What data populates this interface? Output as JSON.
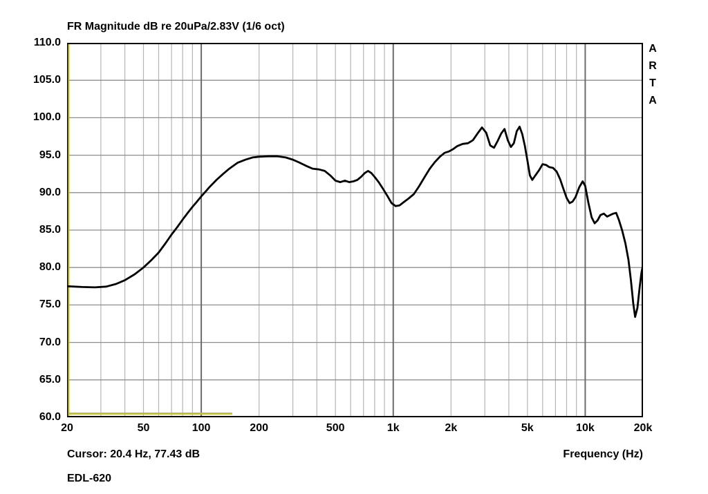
{
  "branding": {
    "vertical_label": "ARTA"
  },
  "chart_data": {
    "type": "line",
    "title": "FR Magnitude dB re 20uPa/2.83V (1/6 oct)",
    "xlabel": "Frequency (Hz)",
    "x_scale": "log",
    "xlim": [
      20,
      20000
    ],
    "ylim": [
      60,
      110
    ],
    "y_tick_step": 5,
    "grid_on": true,
    "x_ticks": [
      {
        "value": 20,
        "label": "20"
      },
      {
        "value": 50,
        "label": "50"
      },
      {
        "value": 100,
        "label": "100"
      },
      {
        "value": 200,
        "label": "200"
      },
      {
        "value": 500,
        "label": "500"
      },
      {
        "value": 1000,
        "label": "1k"
      },
      {
        "value": 2000,
        "label": "2k"
      },
      {
        "value": 5000,
        "label": "5k"
      },
      {
        "value": 10000,
        "label": "10k"
      },
      {
        "value": 20000,
        "label": "20k"
      }
    ],
    "y_ticks": [
      {
        "value": 110,
        "label": "110.0"
      },
      {
        "value": 105,
        "label": "105.0"
      },
      {
        "value": 100,
        "label": "100.0"
      },
      {
        "value": 95,
        "label": "95.0"
      },
      {
        "value": 90,
        "label": "90.0"
      },
      {
        "value": 85,
        "label": "85.0"
      },
      {
        "value": 80,
        "label": "80.0"
      },
      {
        "value": 75,
        "label": "75.0"
      },
      {
        "value": 70,
        "label": "70.0"
      },
      {
        "value": 65,
        "label": "65.0"
      },
      {
        "value": 60,
        "label": "60.0"
      }
    ],
    "colors": {
      "minor_grid": "#b4b4b4",
      "major_grid": "#8e8e8e",
      "decade_grid": "#6b6b6b",
      "border": "#000000",
      "curve": "#000000",
      "cursor": "#c9bd22",
      "background": "#ffffff"
    },
    "cursor": {
      "freq_hz": 20.4,
      "db": 77.43,
      "readout": "Cursor: 20.4 Hz, 77.43 dB"
    },
    "marker_line": {
      "db": 60.5,
      "from_hz": 20,
      "to_hz": 145
    },
    "series": [
      {
        "name": "EDL-620",
        "color": "#000000",
        "points": [
          [
            20,
            77.5
          ],
          [
            24,
            77.4
          ],
          [
            28,
            77.35
          ],
          [
            32,
            77.45
          ],
          [
            36,
            77.8
          ],
          [
            40,
            78.3
          ],
          [
            45,
            79.1
          ],
          [
            50,
            80.0
          ],
          [
            55,
            81.0
          ],
          [
            60,
            82.0
          ],
          [
            65,
            83.2
          ],
          [
            70,
            84.4
          ],
          [
            75,
            85.4
          ],
          [
            80,
            86.4
          ],
          [
            85,
            87.3
          ],
          [
            90,
            88.1
          ],
          [
            95,
            88.8
          ],
          [
            100,
            89.5
          ],
          [
            105,
            90.1
          ],
          [
            110,
            90.7
          ],
          [
            120,
            91.7
          ],
          [
            130,
            92.5
          ],
          [
            140,
            93.2
          ],
          [
            155,
            94.0
          ],
          [
            170,
            94.4
          ],
          [
            185,
            94.7
          ],
          [
            200,
            94.8
          ],
          [
            225,
            94.85
          ],
          [
            250,
            94.85
          ],
          [
            275,
            94.7
          ],
          [
            300,
            94.4
          ],
          [
            325,
            94.0
          ],
          [
            350,
            93.6
          ],
          [
            380,
            93.2
          ],
          [
            410,
            93.1
          ],
          [
            440,
            92.9
          ],
          [
            470,
            92.3
          ],
          [
            500,
            91.6
          ],
          [
            530,
            91.4
          ],
          [
            560,
            91.6
          ],
          [
            590,
            91.4
          ],
          [
            620,
            91.5
          ],
          [
            650,
            91.7
          ],
          [
            680,
            92.1
          ],
          [
            710,
            92.6
          ],
          [
            740,
            92.9
          ],
          [
            770,
            92.6
          ],
          [
            800,
            92.1
          ],
          [
            840,
            91.4
          ],
          [
            880,
            90.6
          ],
          [
            930,
            89.6
          ],
          [
            980,
            88.6
          ],
          [
            1030,
            88.2
          ],
          [
            1080,
            88.3
          ],
          [
            1130,
            88.7
          ],
          [
            1200,
            89.2
          ],
          [
            1280,
            89.8
          ],
          [
            1360,
            90.8
          ],
          [
            1450,
            92.0
          ],
          [
            1550,
            93.2
          ],
          [
            1650,
            94.1
          ],
          [
            1750,
            94.8
          ],
          [
            1850,
            95.3
          ],
          [
            1950,
            95.5
          ],
          [
            2050,
            95.8
          ],
          [
            2150,
            96.2
          ],
          [
            2300,
            96.5
          ],
          [
            2450,
            96.6
          ],
          [
            2600,
            97.0
          ],
          [
            2750,
            97.9
          ],
          [
            2900,
            98.7
          ],
          [
            3050,
            98.0
          ],
          [
            3200,
            96.3
          ],
          [
            3350,
            96.0
          ],
          [
            3500,
            96.9
          ],
          [
            3650,
            97.9
          ],
          [
            3800,
            98.5
          ],
          [
            3950,
            97.0
          ],
          [
            4100,
            96.1
          ],
          [
            4250,
            96.6
          ],
          [
            4400,
            98.2
          ],
          [
            4550,
            98.8
          ],
          [
            4700,
            97.8
          ],
          [
            4850,
            96.2
          ],
          [
            5000,
            94.3
          ],
          [
            5150,
            92.3
          ],
          [
            5300,
            91.7
          ],
          [
            5500,
            92.3
          ],
          [
            5750,
            93.0
          ],
          [
            6000,
            93.8
          ],
          [
            6250,
            93.7
          ],
          [
            6500,
            93.4
          ],
          [
            6800,
            93.3
          ],
          [
            7100,
            92.8
          ],
          [
            7400,
            91.8
          ],
          [
            7700,
            90.5
          ],
          [
            8000,
            89.3
          ],
          [
            8300,
            88.6
          ],
          [
            8600,
            88.8
          ],
          [
            8900,
            89.4
          ],
          [
            9300,
            90.7
          ],
          [
            9700,
            91.5
          ],
          [
            10000,
            90.9
          ],
          [
            10400,
            88.6
          ],
          [
            10800,
            86.7
          ],
          [
            11200,
            85.9
          ],
          [
            11600,
            86.3
          ],
          [
            12000,
            87.0
          ],
          [
            12500,
            87.2
          ],
          [
            13000,
            86.8
          ],
          [
            13500,
            87.0
          ],
          [
            14000,
            87.2
          ],
          [
            14500,
            87.3
          ],
          [
            15000,
            86.3
          ],
          [
            15600,
            84.9
          ],
          [
            16200,
            83.2
          ],
          [
            16800,
            81.0
          ],
          [
            17300,
            78.3
          ],
          [
            17800,
            75.2
          ],
          [
            18200,
            73.4
          ],
          [
            18700,
            74.6
          ],
          [
            19200,
            77.3
          ],
          [
            19600,
            79.2
          ],
          [
            20000,
            80.4
          ]
        ]
      }
    ]
  }
}
